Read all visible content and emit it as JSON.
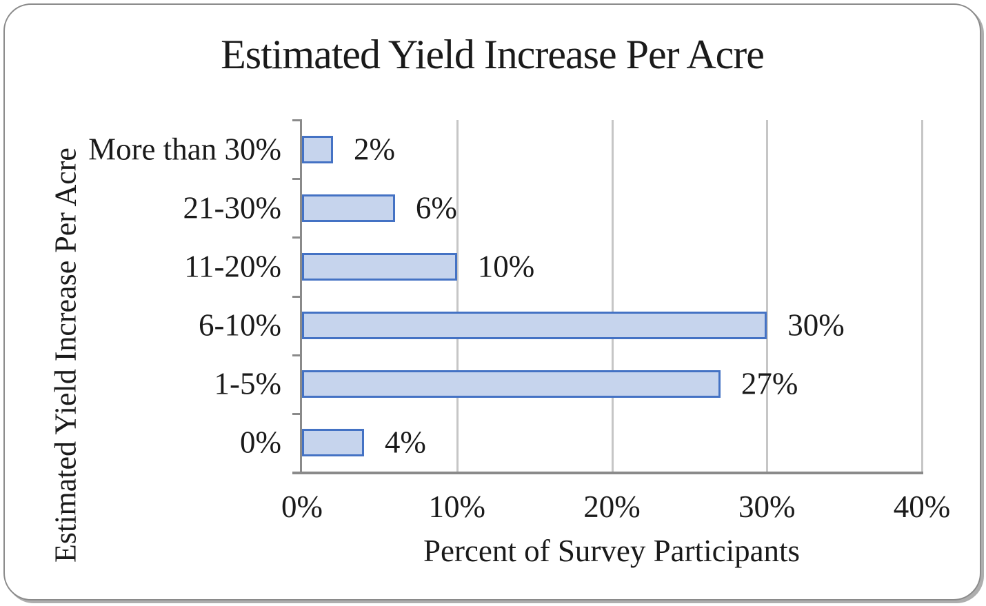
{
  "chart_data": {
    "type": "bar",
    "orientation": "horizontal",
    "title": "Estimated Yield Increase Per Acre",
    "xlabel": "Percent of Survey Participants",
    "ylabel": "Estimated Yield Increase Per Acre",
    "categories": [
      "More than 30%",
      "21-30%",
      "11-20%",
      "6-10%",
      "1-5%",
      "0%"
    ],
    "values": [
      2,
      6,
      10,
      30,
      27,
      4
    ],
    "data_labels": [
      "2%",
      "6%",
      "10%",
      "30%",
      "27%",
      "4%"
    ],
    "x_ticks": [
      "0%",
      "10%",
      "20%",
      "30%",
      "40%"
    ],
    "x_tick_values": [
      0,
      10,
      20,
      30,
      40
    ],
    "xlim": [
      0,
      40
    ],
    "grid": "vertical-only",
    "legend": "none",
    "colors": {
      "bar_fill": "#c6d4ed",
      "bar_border": "#4472c4",
      "gridline": "#c6c6c6",
      "axis_line": "#8a8a8a",
      "text": "#1a1a1a",
      "frame_border": "#8a8a8a",
      "frame_shadow": "#aeaeae",
      "background": "#ffffff"
    }
  }
}
